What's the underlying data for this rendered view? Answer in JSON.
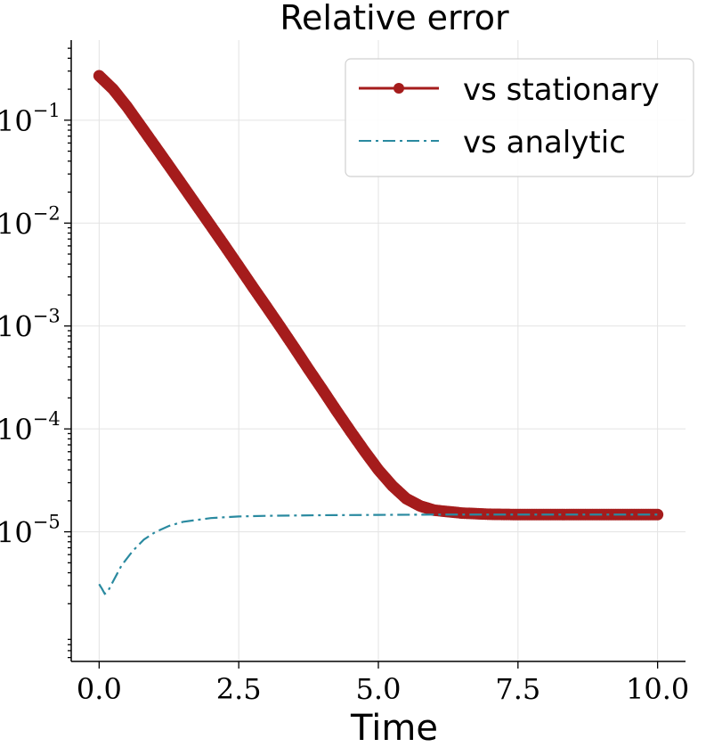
{
  "chart_data": {
    "type": "line",
    "title": "Relative error",
    "xlabel": "Time",
    "ylabel": "",
    "yscale": "log",
    "xlim": [
      -0.5,
      10.5
    ],
    "ylim": [
      5.5e-07,
      0.6
    ],
    "grid": true,
    "legend_position": "top-right",
    "x_ticks": [
      {
        "value": 0.0,
        "label": "0.0"
      },
      {
        "value": 2.5,
        "label": "2.5"
      },
      {
        "value": 5.0,
        "label": "5.0"
      },
      {
        "value": 7.5,
        "label": "7.5"
      },
      {
        "value": 10.0,
        "label": "10.0"
      }
    ],
    "y_ticks": [
      {
        "value": 0.1,
        "base": "10",
        "exp": "−1"
      },
      {
        "value": 0.01,
        "base": "10",
        "exp": "−2"
      },
      {
        "value": 0.001,
        "base": "10",
        "exp": "−3"
      },
      {
        "value": 0.0001,
        "base": "10",
        "exp": "−4"
      },
      {
        "value": 1e-05,
        "base": "10",
        "exp": "−5"
      }
    ],
    "series": [
      {
        "name": "vs stationary",
        "color": "#a51c1c",
        "style": "line-markers",
        "x": [
          0.0,
          0.25,
          0.5,
          0.75,
          1.0,
          1.25,
          1.5,
          1.75,
          2.0,
          2.25,
          2.5,
          2.75,
          3.0,
          3.25,
          3.5,
          3.75,
          4.0,
          4.25,
          4.5,
          4.75,
          5.0,
          5.25,
          5.5,
          5.75,
          6.0,
          6.5,
          7.0,
          7.5,
          8.0,
          8.5,
          9.0,
          9.5,
          10.0
        ],
        "values": [
          0.27,
          0.2,
          0.135,
          0.087,
          0.056,
          0.036,
          0.023,
          0.0147,
          0.0094,
          0.006,
          0.0038,
          0.0024,
          0.00153,
          0.00097,
          0.00061,
          0.00038,
          0.00024,
          0.00015,
          9.5e-05,
          6.1e-05,
          4e-05,
          2.8e-05,
          2.1e-05,
          1.78e-05,
          1.62e-05,
          1.52e-05,
          1.48e-05,
          1.47e-05,
          1.47e-05,
          1.47e-05,
          1.47e-05,
          1.47e-05,
          1.47e-05
        ]
      },
      {
        "name": "vs analytic",
        "color": "#2a8aa0",
        "style": "dashdot",
        "x": [
          0.0,
          0.05,
          0.1,
          0.15,
          0.25,
          0.4,
          0.6,
          0.8,
          1.0,
          1.25,
          1.5,
          2.0,
          2.5,
          3.0,
          4.0,
          5.0,
          6.0,
          7.0,
          8.0,
          9.0,
          10.0
        ],
        "values": [
          3.1e-06,
          2.8e-06,
          2.5e-06,
          2.6e-06,
          3.3e-06,
          4.7e-06,
          6.5e-06,
          8.4e-06,
          9.9e-06,
          1.14e-05,
          1.25e-05,
          1.36e-05,
          1.41e-05,
          1.43e-05,
          1.45e-05,
          1.46e-05,
          1.47e-05,
          1.47e-05,
          1.47e-05,
          1.47e-05,
          1.47e-05
        ]
      }
    ]
  }
}
